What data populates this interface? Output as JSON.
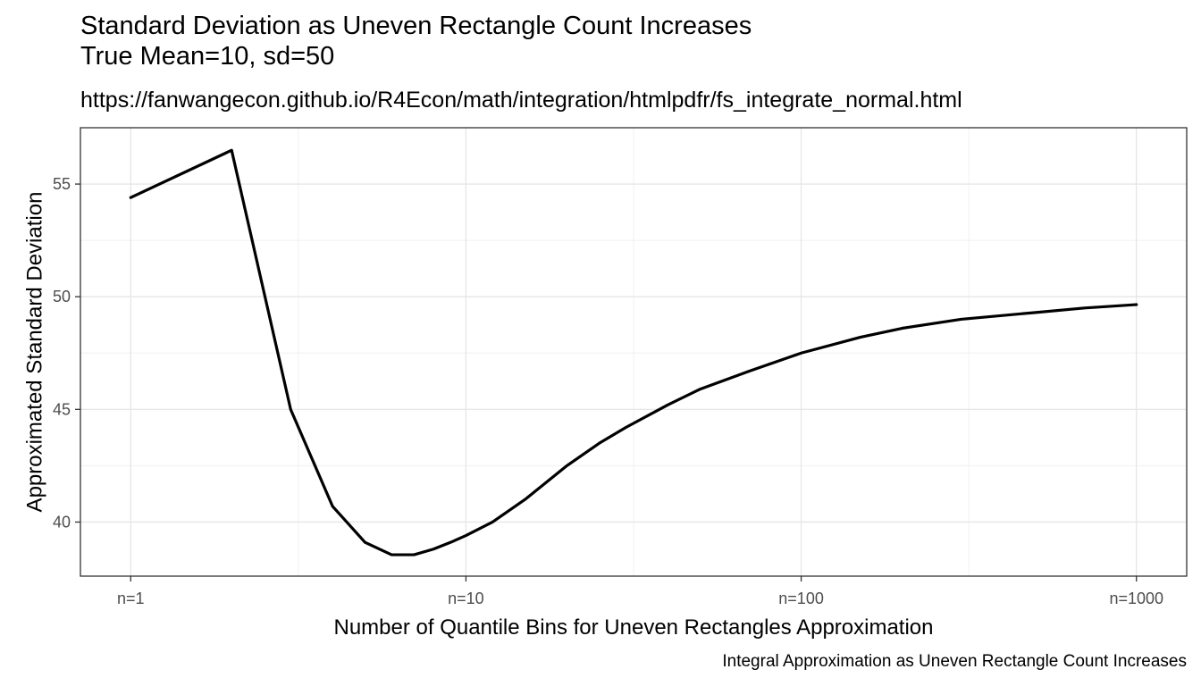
{
  "chart_data": {
    "type": "line",
    "title_lines": [
      "Standard Deviation as Uneven Rectangle Count Increases",
      "True Mean=10, sd=50"
    ],
    "subtitle": "https://fanwangecon.github.io/R4Econ/math/integration/htmlpdfr/fs_integrate_normal.html",
    "caption": "Integral Approximation as Uneven Rectangle Count Increases",
    "xlabel": "Number of Quantile Bins for Uneven Rectangles Approximation",
    "ylabel": "Approximated Standard Deviation",
    "x_scale": "log10",
    "xlim": [
      1,
      1000
    ],
    "ylim": [
      37.6,
      57.5
    ],
    "x_ticks": [
      1,
      10,
      100,
      1000
    ],
    "x_tick_labels": [
      "n=1",
      "n=10",
      "n=100",
      "n=1000"
    ],
    "y_ticks": [
      40,
      45,
      50,
      55
    ],
    "y_tick_labels": [
      "40",
      "45",
      "50",
      "55"
    ],
    "grid": true,
    "series": [
      {
        "color": "#000000",
        "x": [
          1,
          2,
          3,
          4,
          5,
          6,
          7,
          8,
          9,
          10,
          12,
          15,
          20,
          25,
          30,
          40,
          50,
          70,
          100,
          150,
          200,
          300,
          500,
          700,
          1000
        ],
        "y": [
          54.4,
          56.5,
          45.0,
          40.7,
          39.1,
          38.55,
          38.55,
          38.8,
          39.1,
          39.4,
          40.0,
          41.0,
          42.5,
          43.5,
          44.2,
          45.2,
          45.9,
          46.7,
          47.5,
          48.2,
          48.6,
          49.0,
          49.3,
          49.5,
          49.65
        ]
      }
    ]
  }
}
